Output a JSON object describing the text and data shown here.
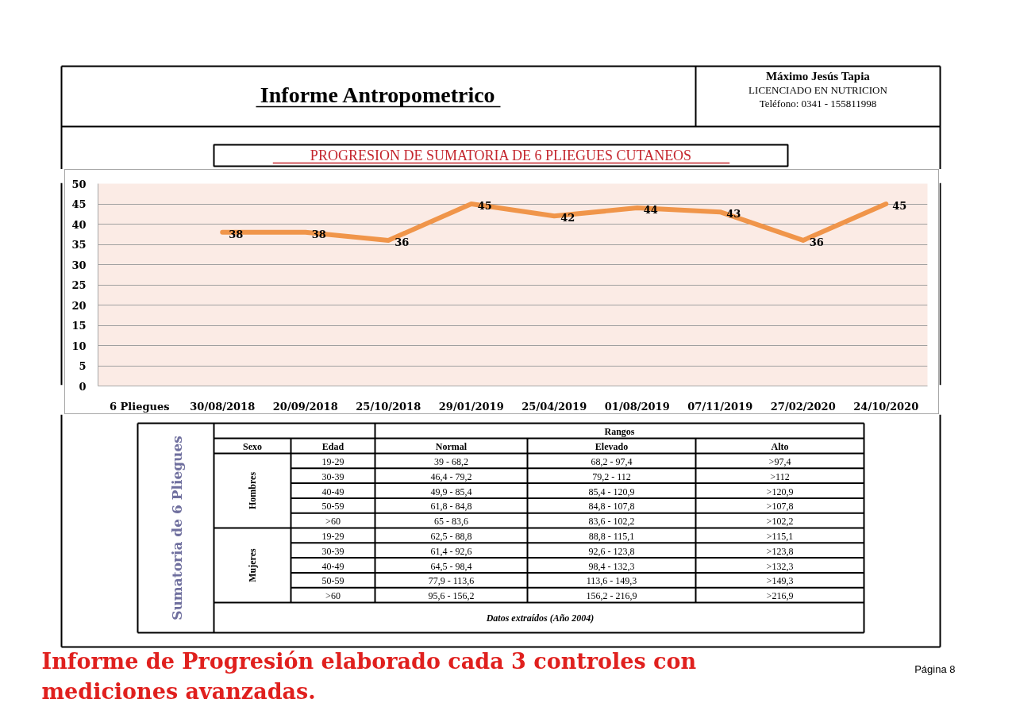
{
  "chart_data": [
    {
      "type": "other",
      "title": "Informe Antropometrico",
      "annotations": [
        "Máximo Jesús Tapia",
        "LICENCIADO EN NUTRICION",
        "Teléfono: 0341 - 155811998"
      ]
    },
    {
      "type": "line",
      "title": "PROGRESION DE SUMATORIA DE 6 PLIEGUES CUTANEOS",
      "categories": [
        "6 Pliegues",
        "30/08/2018",
        "20/09/2018",
        "25/10/2018",
        "29/01/2019",
        "25/04/2019",
        "01/08/2019",
        "07/11/2019",
        "27/02/2020",
        "24/10/2020"
      ],
      "values": [
        null,
        38,
        38,
        36,
        45,
        42,
        44,
        43,
        36,
        45
      ],
      "color": "#f0954a",
      "line_style": "solid",
      "ylim": [
        0,
        50
      ],
      "yticks": [
        0,
        5,
        10,
        15,
        20,
        25,
        30,
        35,
        40,
        45,
        50
      ],
      "grid": "y",
      "data_labels": true
    },
    {
      "type": "other",
      "title": "Sumatoria de 6 Pliegues",
      "annotations": [
        "Rangos",
        "Sexo",
        "Edad",
        "Normal",
        "Elevado",
        "Alto",
        "Hombres",
        "Mujeres",
        "19-29",
        "39 - 68,2",
        "68,2 - 97,4",
        ">97,4",
        "30-39",
        "46,4 - 79,2",
        "79,2 - 112",
        ">112",
        "40-49",
        "49,9 - 85,4",
        "85,4 - 120,9",
        ">120,9",
        "50-59",
        "61,8 - 84,8",
        "84,8 - 107,8",
        ">107,8",
        ">60",
        "65 - 83,6",
        "83,6 - 102,2",
        ">102,2",
        "19-29",
        "62,5 - 88,8",
        "88,8 - 115,1",
        ">115,1",
        "30-39",
        "61,4 - 92,6",
        "92,6 - 123,8",
        ">123,8",
        "40-49",
        "64,5 - 98,4",
        "98,4 - 132,3",
        ">132,3",
        "50-59",
        "77,9 - 113,6",
        "113,6 - 149,3",
        ">149,3",
        ">60",
        "95,6 - 156,2",
        "156,2 - 216,9",
        ">216,9",
        "Datos extraídos (Año 2004)"
      ]
    },
    {
      "type": "other",
      "annotations": [
        "Informe de Progresión elaborado cada 3 controles con mediciones avanzadas.",
        "Página 8"
      ]
    }
  ]
}
